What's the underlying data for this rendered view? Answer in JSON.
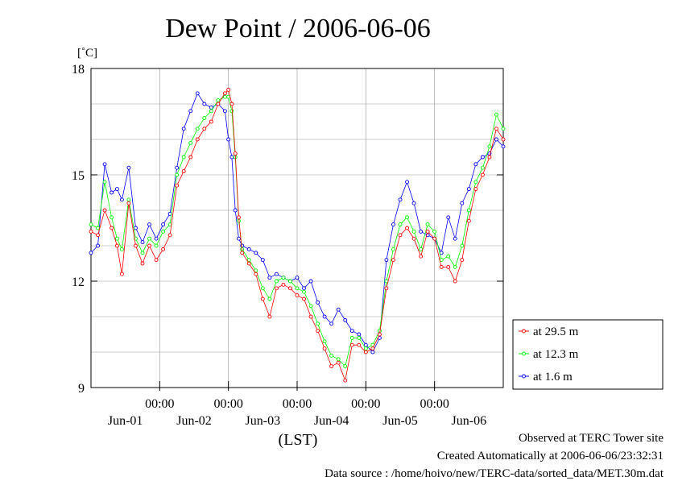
{
  "chart_data": {
    "type": "line",
    "title": "Dew Point / 2006-06-06",
    "ylabel": "[˚C]",
    "xlabel": "(LST)",
    "ylim": [
      9,
      18
    ],
    "yticks": [
      9,
      12,
      15,
      18
    ],
    "xlim": [
      0,
      6
    ],
    "x_unit": "days from 2006-05-31 18:00 LST",
    "xticks_time": [
      {
        "x": 1,
        "label": "00:00"
      },
      {
        "x": 2,
        "label": "00:00"
      },
      {
        "x": 3,
        "label": "00:00"
      },
      {
        "x": 4,
        "label": "00:00"
      },
      {
        "x": 5,
        "label": "00:00"
      }
    ],
    "xticks_date": [
      {
        "x": 0.5,
        "label": "Jun-01"
      },
      {
        "x": 1.5,
        "label": "Jun-02"
      },
      {
        "x": 2.5,
        "label": "Jun-03"
      },
      {
        "x": 3.5,
        "label": "Jun-04"
      },
      {
        "x": 4.5,
        "label": "Jun-05"
      },
      {
        "x": 5.5,
        "label": "Jun-06"
      }
    ],
    "grid": true,
    "legend_position": "right",
    "series": [
      {
        "name": "at 29.5 m",
        "color": "#ff0000",
        "points": [
          [
            0,
            13.4
          ],
          [
            0.1,
            13.3
          ],
          [
            0.2,
            14.0
          ],
          [
            0.3,
            13.5
          ],
          [
            0.38,
            13.0
          ],
          [
            0.45,
            12.2
          ],
          [
            0.55,
            14.2
          ],
          [
            0.65,
            13.0
          ],
          [
            0.75,
            12.5
          ],
          [
            0.85,
            13.0
          ],
          [
            0.95,
            12.6
          ],
          [
            1.05,
            12.9
          ],
          [
            1.15,
            13.3
          ],
          [
            1.25,
            14.7
          ],
          [
            1.35,
            15.1
          ],
          [
            1.45,
            15.5
          ],
          [
            1.55,
            16.0
          ],
          [
            1.65,
            16.3
          ],
          [
            1.75,
            16.5
          ],
          [
            1.85,
            17.0
          ],
          [
            1.95,
            17.3
          ],
          [
            2.0,
            17.4
          ],
          [
            2.05,
            17.0
          ],
          [
            2.1,
            15.6
          ],
          [
            2.15,
            13.8
          ],
          [
            2.2,
            12.8
          ],
          [
            2.3,
            12.5
          ],
          [
            2.4,
            12.2
          ],
          [
            2.5,
            11.5
          ],
          [
            2.6,
            11.0
          ],
          [
            2.7,
            11.8
          ],
          [
            2.8,
            11.9
          ],
          [
            2.9,
            11.8
          ],
          [
            3.0,
            11.6
          ],
          [
            3.1,
            11.5
          ],
          [
            3.2,
            11.0
          ],
          [
            3.3,
            10.6
          ],
          [
            3.4,
            10.1
          ],
          [
            3.5,
            9.6
          ],
          [
            3.6,
            9.7
          ],
          [
            3.7,
            9.2
          ],
          [
            3.8,
            10.2
          ],
          [
            3.9,
            10.2
          ],
          [
            4.0,
            10.0
          ],
          [
            4.1,
            10.1
          ],
          [
            4.2,
            10.5
          ],
          [
            4.3,
            11.8
          ],
          [
            4.4,
            12.6
          ],
          [
            4.5,
            13.3
          ],
          [
            4.6,
            13.5
          ],
          [
            4.7,
            13.2
          ],
          [
            4.8,
            12.7
          ],
          [
            4.9,
            13.4
          ],
          [
            5.0,
            13.2
          ],
          [
            5.1,
            12.4
          ],
          [
            5.2,
            12.4
          ],
          [
            5.3,
            12.0
          ],
          [
            5.4,
            12.6
          ],
          [
            5.5,
            13.7
          ],
          [
            5.6,
            14.6
          ],
          [
            5.7,
            15.0
          ],
          [
            5.8,
            15.5
          ],
          [
            5.9,
            16.3
          ],
          [
            6.0,
            16.0
          ]
        ]
      },
      {
        "name": "at 12.3 m",
        "color": "#00ff00",
        "points": [
          [
            0,
            13.6
          ],
          [
            0.1,
            13.5
          ],
          [
            0.2,
            14.8
          ],
          [
            0.3,
            13.8
          ],
          [
            0.38,
            13.2
          ],
          [
            0.45,
            12.9
          ],
          [
            0.55,
            14.3
          ],
          [
            0.65,
            13.2
          ],
          [
            0.75,
            12.8
          ],
          [
            0.85,
            13.2
          ],
          [
            0.95,
            13.0
          ],
          [
            1.05,
            13.4
          ],
          [
            1.15,
            13.6
          ],
          [
            1.25,
            15.0
          ],
          [
            1.35,
            15.5
          ],
          [
            1.45,
            15.9
          ],
          [
            1.55,
            16.3
          ],
          [
            1.65,
            16.6
          ],
          [
            1.75,
            16.8
          ],
          [
            1.85,
            17.1
          ],
          [
            1.95,
            17.2
          ],
          [
            2.0,
            17.2
          ],
          [
            2.05,
            16.8
          ],
          [
            2.1,
            15.5
          ],
          [
            2.15,
            13.7
          ],
          [
            2.2,
            12.9
          ],
          [
            2.3,
            12.6
          ],
          [
            2.4,
            12.3
          ],
          [
            2.5,
            11.8
          ],
          [
            2.6,
            11.5
          ],
          [
            2.7,
            12.0
          ],
          [
            2.8,
            12.1
          ],
          [
            2.9,
            12.0
          ],
          [
            3.0,
            11.8
          ],
          [
            3.1,
            11.7
          ],
          [
            3.2,
            11.3
          ],
          [
            3.3,
            10.8
          ],
          [
            3.4,
            10.3
          ],
          [
            3.5,
            9.9
          ],
          [
            3.6,
            9.8
          ],
          [
            3.7,
            9.6
          ],
          [
            3.8,
            10.4
          ],
          [
            3.9,
            10.4
          ],
          [
            4.0,
            10.1
          ],
          [
            4.1,
            10.2
          ],
          [
            4.2,
            10.6
          ],
          [
            4.3,
            12.0
          ],
          [
            4.4,
            12.9
          ],
          [
            4.5,
            13.6
          ],
          [
            4.6,
            13.8
          ],
          [
            4.7,
            13.4
          ],
          [
            4.8,
            12.9
          ],
          [
            4.9,
            13.6
          ],
          [
            5.0,
            13.4
          ],
          [
            5.1,
            12.6
          ],
          [
            5.2,
            12.7
          ],
          [
            5.3,
            12.4
          ],
          [
            5.4,
            13.0
          ],
          [
            5.5,
            14.0
          ],
          [
            5.6,
            14.8
          ],
          [
            5.7,
            15.2
          ],
          [
            5.8,
            15.8
          ],
          [
            5.9,
            16.7
          ],
          [
            6.0,
            16.3
          ]
        ]
      },
      {
        "name": "at 1.6 m",
        "color": "#0000ff",
        "points": [
          [
            0,
            12.8
          ],
          [
            0.1,
            13.0
          ],
          [
            0.2,
            15.3
          ],
          [
            0.3,
            14.5
          ],
          [
            0.38,
            14.6
          ],
          [
            0.45,
            14.3
          ],
          [
            0.55,
            15.2
          ],
          [
            0.65,
            13.5
          ],
          [
            0.75,
            13.1
          ],
          [
            0.85,
            13.6
          ],
          [
            0.95,
            13.2
          ],
          [
            1.05,
            13.6
          ],
          [
            1.15,
            13.9
          ],
          [
            1.25,
            15.2
          ],
          [
            1.35,
            16.3
          ],
          [
            1.45,
            16.8
          ],
          [
            1.55,
            17.3
          ],
          [
            1.65,
            17.0
          ],
          [
            1.75,
            16.9
          ],
          [
            1.85,
            17.0
          ],
          [
            1.95,
            16.8
          ],
          [
            2.0,
            16.0
          ],
          [
            2.05,
            15.5
          ],
          [
            2.1,
            14.0
          ],
          [
            2.15,
            13.2
          ],
          [
            2.2,
            13.0
          ],
          [
            2.3,
            12.9
          ],
          [
            2.4,
            12.8
          ],
          [
            2.5,
            12.6
          ],
          [
            2.6,
            12.1
          ],
          [
            2.7,
            12.2
          ],
          [
            2.8,
            12.1
          ],
          [
            2.9,
            12.0
          ],
          [
            3.0,
            12.1
          ],
          [
            3.1,
            11.8
          ],
          [
            3.2,
            12.0
          ],
          [
            3.3,
            11.4
          ],
          [
            3.4,
            11.0
          ],
          [
            3.5,
            10.8
          ],
          [
            3.6,
            11.2
          ],
          [
            3.7,
            10.9
          ],
          [
            3.8,
            10.6
          ],
          [
            3.9,
            10.5
          ],
          [
            4.0,
            10.2
          ],
          [
            4.1,
            10.0
          ],
          [
            4.2,
            10.4
          ],
          [
            4.3,
            12.6
          ],
          [
            4.4,
            13.6
          ],
          [
            4.5,
            14.3
          ],
          [
            4.6,
            14.8
          ],
          [
            4.7,
            14.2
          ],
          [
            4.8,
            13.4
          ],
          [
            4.9,
            13.3
          ],
          [
            5.0,
            13.2
          ],
          [
            5.1,
            12.8
          ],
          [
            5.2,
            13.8
          ],
          [
            5.3,
            13.2
          ],
          [
            5.4,
            14.2
          ],
          [
            5.5,
            14.6
          ],
          [
            5.6,
            15.3
          ],
          [
            5.7,
            15.5
          ],
          [
            5.8,
            15.6
          ],
          [
            5.9,
            16.0
          ],
          [
            6.0,
            15.8
          ]
        ]
      }
    ]
  },
  "footer": {
    "line1": "Observed at TERC Tower site",
    "line2": "Created Automatically at 2006-06-06/23:32:31",
    "line3": "Data source : /home/hoivo/new/TERC-data/sorted_data/MET.30m.dat"
  }
}
